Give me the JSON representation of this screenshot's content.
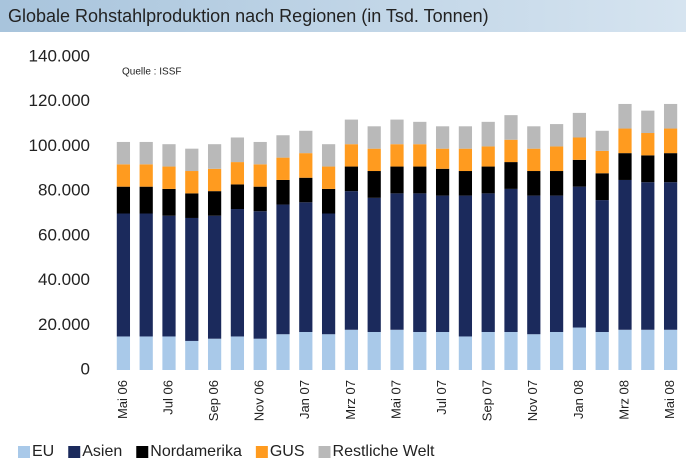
{
  "chart_data": {
    "type": "stacked_bar",
    "title": "Globale Rohstahlproduktion nach Regionen (in Tsd. Tonnen)",
    "annotation": "Quelle : ISSF",
    "categories": [
      "Mai 06",
      null,
      "Jul 06",
      null,
      "Sep 06",
      null,
      "Nov 06",
      null,
      "Jan 07",
      null,
      "Mrz 07",
      null,
      "Mai 07",
      null,
      "Jul 07",
      null,
      "Sep 07",
      null,
      "Nov 07",
      null,
      "Jan 08",
      null,
      "Mrz 08",
      null,
      "Mai 08"
    ],
    "series": [
      {
        "name": "EU",
        "color": "#a9c9e9",
        "values": [
          15000,
          15000,
          15000,
          13000,
          14000,
          15000,
          14000,
          16000,
          17000,
          16000,
          18000,
          17000,
          18000,
          17000,
          17000,
          15000,
          17000,
          17000,
          16000,
          17000,
          19000,
          17000,
          18000,
          18000,
          18000
        ]
      },
      {
        "name": "Asien",
        "color": "#1b2a5c",
        "values": [
          55000,
          55000,
          54000,
          55000,
          55000,
          57000,
          57000,
          58000,
          58000,
          54000,
          62000,
          60000,
          61000,
          62000,
          61000,
          63000,
          62000,
          64000,
          62000,
          61000,
          63000,
          59000,
          67000,
          66000,
          66000
        ]
      },
      {
        "name": "Nordamerika",
        "color": "#000000",
        "values": [
          12000,
          12000,
          12000,
          11000,
          11000,
          11000,
          11000,
          11000,
          11000,
          11000,
          11000,
          12000,
          12000,
          12000,
          12000,
          11000,
          12000,
          12000,
          11000,
          11000,
          12000,
          12000,
          12000,
          12000,
          13000
        ]
      },
      {
        "name": "GUS",
        "color": "#ff9b1f",
        "values": [
          10000,
          10000,
          10000,
          10000,
          10000,
          10000,
          10000,
          10000,
          11000,
          10000,
          10000,
          10000,
          10000,
          10000,
          9000,
          10000,
          9000,
          10000,
          10000,
          11000,
          10000,
          10000,
          11000,
          10000,
          11000
        ]
      },
      {
        "name": "Restliche Welt",
        "color": "#b9b9b9",
        "values": [
          10000,
          10000,
          10000,
          10000,
          11000,
          11000,
          10000,
          10000,
          10000,
          10000,
          11000,
          10000,
          11000,
          10000,
          10000,
          10000,
          11000,
          11000,
          10000,
          10000,
          11000,
          9000,
          11000,
          10000,
          11000
        ]
      }
    ],
    "ylim": [
      0,
      140000
    ],
    "yticks": [
      0,
      {
        "value": 20000,
        "label": "20.000"
      },
      {
        "value": 40000,
        "label": "40.000"
      },
      {
        "value": 60000,
        "label": "60.000"
      },
      {
        "value": 80000,
        "label": "80.000"
      },
      {
        "value": 100000,
        "label": "100.000"
      },
      {
        "value": 120000,
        "label": "120.000"
      },
      {
        "value": 140000,
        "label": "140.000"
      }
    ],
    "grid": false,
    "legend": "bottom"
  }
}
